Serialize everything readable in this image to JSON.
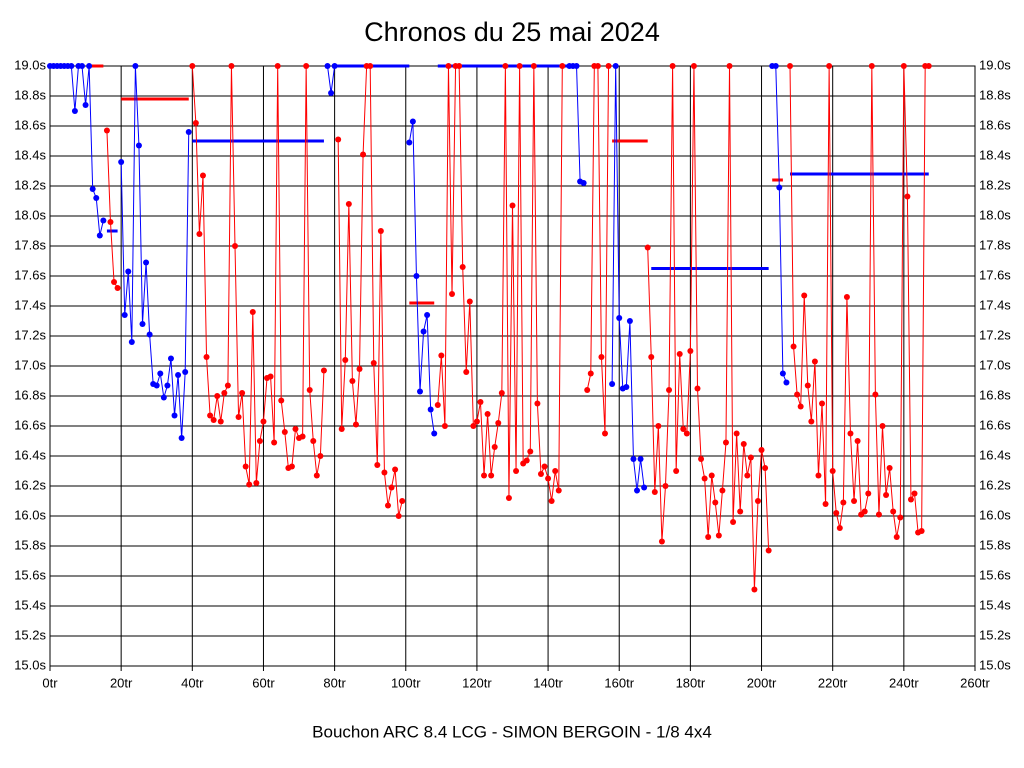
{
  "chart_data": {
    "type": "line",
    "title": "Chronos du 25 mai 2024",
    "caption": "Bouchon ARC 8.4 LCG - SIMON BERGOIN - 1/8 4x4",
    "xlim": [
      0,
      260
    ],
    "ylim": [
      15.0,
      19.0
    ],
    "grid": true,
    "xticks": [
      {
        "value": 0,
        "label": "0tr"
      },
      {
        "value": 20,
        "label": "20tr"
      },
      {
        "value": 40,
        "label": "40tr"
      },
      {
        "value": 60,
        "label": "60tr"
      },
      {
        "value": 80,
        "label": "80tr"
      },
      {
        "value": 100,
        "label": "100tr"
      },
      {
        "value": 120,
        "label": "120tr"
      },
      {
        "value": 140,
        "label": "140tr"
      },
      {
        "value": 160,
        "label": "160tr"
      },
      {
        "value": 180,
        "label": "180tr"
      },
      {
        "value": 200,
        "label": "200tr"
      },
      {
        "value": 220,
        "label": "220tr"
      },
      {
        "value": 240,
        "label": "240tr"
      },
      {
        "value": 260,
        "label": "260tr"
      }
    ],
    "yticks": [
      {
        "value": 15.0,
        "label": "15.0s"
      },
      {
        "value": 15.2,
        "label": "15.2s"
      },
      {
        "value": 15.4,
        "label": "15.4s"
      },
      {
        "value": 15.6,
        "label": "15.6s"
      },
      {
        "value": 15.8,
        "label": "15.8s"
      },
      {
        "value": 16.0,
        "label": "16.0s"
      },
      {
        "value": 16.2,
        "label": "16.2s"
      },
      {
        "value": 16.4,
        "label": "16.4s"
      },
      {
        "value": 16.6,
        "label": "16.6s"
      },
      {
        "value": 16.8,
        "label": "16.8s"
      },
      {
        "value": 17.0,
        "label": "17.0s"
      },
      {
        "value": 17.2,
        "label": "17.2s"
      },
      {
        "value": 17.4,
        "label": "17.4s"
      },
      {
        "value": 17.6,
        "label": "17.6s"
      },
      {
        "value": 17.8,
        "label": "17.8s"
      },
      {
        "value": 18.0,
        "label": "18.0s"
      },
      {
        "value": 18.2,
        "label": "18.2s"
      },
      {
        "value": 18.4,
        "label": "18.4s"
      },
      {
        "value": 18.6,
        "label": "18.6s"
      },
      {
        "value": 18.8,
        "label": "18.8s"
      },
      {
        "value": 19.0,
        "label": "19.0s"
      }
    ],
    "series": [
      {
        "color": "#0000ff",
        "x": [
          0,
          1,
          2,
          3,
          4,
          5,
          6,
          7,
          8,
          9,
          10,
          11,
          12,
          13,
          14,
          15
        ],
        "values": [
          19,
          19,
          19,
          19,
          19,
          19,
          19,
          18.7,
          19,
          19,
          18.74,
          19,
          18.18,
          18.12,
          17.87,
          17.97
        ]
      },
      {
        "color": "#ff0000",
        "x": [
          16,
          17,
          18,
          19
        ],
        "values": [
          18.57,
          17.96,
          17.56,
          17.52
        ]
      },
      {
        "color": "#0000ff",
        "x": [
          20,
          21,
          22,
          23,
          24,
          25,
          26,
          27,
          28,
          29,
          30,
          31,
          32,
          33,
          34,
          35,
          36,
          37,
          38,
          39
        ],
        "values": [
          18.36,
          17.34,
          17.63,
          17.16,
          19,
          18.47,
          17.28,
          17.69,
          17.21,
          16.88,
          16.87,
          16.95,
          16.79,
          16.87,
          17.05,
          16.67,
          16.94,
          16.52,
          16.96,
          18.56
        ]
      },
      {
        "color": "#ff0000",
        "x": [
          40,
          41,
          42,
          43,
          44,
          45,
          46,
          47,
          48,
          49,
          50,
          51,
          52,
          53,
          54,
          55,
          56,
          57,
          58,
          59,
          60,
          61,
          62,
          63,
          64,
          65,
          66,
          67,
          68,
          69,
          70,
          71,
          72,
          73,
          74,
          75,
          76,
          77
        ],
        "values": [
          19,
          18.62,
          17.88,
          18.27,
          17.06,
          16.67,
          16.64,
          16.8,
          16.63,
          16.82,
          16.87,
          19,
          17.8,
          16.66,
          16.82,
          16.33,
          16.21,
          17.36,
          16.22,
          16.5,
          16.63,
          16.92,
          16.93,
          16.49,
          19,
          16.77,
          16.56,
          16.32,
          16.33,
          16.58,
          16.52,
          16.53,
          19,
          16.84,
          16.5,
          16.27,
          16.4,
          16.97
        ]
      },
      {
        "color": "#0000ff",
        "x": [
          78,
          79,
          80
        ],
        "values": [
          19,
          18.82,
          19
        ]
      },
      {
        "color": "#ff0000",
        "x": [
          81,
          82,
          83,
          84,
          85,
          86,
          87,
          88,
          89,
          90,
          91,
          92,
          93,
          94,
          95,
          96,
          97,
          98,
          99
        ],
        "values": [
          18.51,
          16.58,
          17.04,
          18.08,
          16.9,
          16.61,
          16.98,
          18.41,
          19,
          19,
          17.02,
          16.34,
          17.9,
          16.29,
          16.07,
          16.19,
          16.31,
          16.0,
          16.1
        ]
      },
      {
        "color": "#0000ff",
        "x": [
          101,
          102,
          103,
          104,
          105,
          106,
          107,
          108
        ],
        "values": [
          18.49,
          18.63,
          17.6,
          16.83,
          17.23,
          17.34,
          16.71,
          16.55
        ]
      },
      {
        "color": "#ff0000",
        "x": [
          109,
          110,
          111,
          112,
          113,
          114,
          115,
          116,
          117,
          118,
          119,
          120,
          121,
          122,
          123,
          124,
          125,
          126,
          127,
          128,
          129,
          130,
          131,
          132,
          133,
          134,
          135,
          136,
          137,
          138,
          139,
          140,
          141,
          142,
          143,
          144
        ],
        "values": [
          16.74,
          17.07,
          16.6,
          19,
          17.48,
          19,
          19,
          17.66,
          16.96,
          17.43,
          16.6,
          16.63,
          16.76,
          16.27,
          16.68,
          16.27,
          16.46,
          16.62,
          16.82,
          19,
          16.12,
          18.07,
          16.3,
          19,
          16.35,
          16.37,
          16.43,
          19,
          16.75,
          16.28,
          16.33,
          16.25,
          16.1,
          16.3,
          16.17,
          19
        ]
      },
      {
        "color": "#0000ff",
        "x": [
          146,
          147,
          148,
          149,
          150
        ],
        "values": [
          19,
          19,
          19,
          18.23,
          18.22
        ]
      },
      {
        "color": "#ff0000",
        "x": [
          151,
          152,
          153,
          154,
          155,
          156,
          157
        ],
        "values": [
          16.84,
          16.95,
          19,
          19,
          17.06,
          16.55,
          19
        ]
      },
      {
        "color": "#0000ff",
        "x": [
          158,
          159,
          160,
          161,
          162,
          163,
          164,
          165,
          166,
          167
        ],
        "values": [
          16.88,
          19,
          17.32,
          16.85,
          16.86,
          17.3,
          16.38,
          16.17,
          16.38,
          16.19
        ]
      },
      {
        "color": "#ff0000",
        "x": [
          168,
          169,
          170,
          171,
          172,
          173,
          174,
          175,
          176,
          177,
          178,
          179,
          180,
          181,
          182,
          183,
          184,
          185,
          186,
          187,
          188,
          189,
          190,
          191,
          192,
          193,
          194,
          195,
          196,
          197,
          198,
          199,
          200,
          201,
          202
        ],
        "values": [
          17.79,
          17.06,
          16.16,
          16.6,
          15.83,
          16.2,
          16.84,
          19,
          16.3,
          17.08,
          16.58,
          16.55,
          17.1,
          19,
          16.85,
          16.38,
          16.25,
          15.86,
          16.27,
          16.09,
          15.87,
          16.17,
          16.49,
          19,
          15.96,
          16.55,
          16.03,
          16.48,
          16.27,
          16.39,
          15.51,
          16.1,
          16.44,
          16.32,
          15.77
        ]
      },
      {
        "color": "#0000ff",
        "x": [
          203,
          204,
          205,
          206,
          207
        ],
        "values": [
          19,
          19,
          18.19,
          16.95,
          16.89
        ]
      },
      {
        "color": "#ff0000",
        "x": [
          208,
          209,
          210,
          211,
          212,
          213,
          214,
          215,
          216,
          217,
          218,
          219,
          220,
          221,
          222,
          223,
          224,
          225,
          226,
          227,
          228,
          229,
          230,
          231,
          232,
          233,
          234,
          235,
          236,
          237,
          238,
          239,
          240,
          241,
          242,
          243,
          244,
          245,
          246,
          247
        ],
        "values": [
          19,
          17.13,
          16.81,
          16.73,
          17.47,
          16.87,
          16.63,
          17.03,
          16.27,
          16.75,
          16.08,
          19,
          16.3,
          16.02,
          15.92,
          16.09,
          17.46,
          16.55,
          16.1,
          16.5,
          16.01,
          16.03,
          16.15,
          19,
          16.81,
          16.01,
          16.6,
          16.14,
          16.32,
          16.03,
          15.86,
          15.99,
          19,
          18.13,
          16.11,
          16.15,
          15.89,
          15.9,
          19,
          19
        ]
      }
    ],
    "averages": [
      {
        "color": "#ff0000",
        "x": [
          11,
          15
        ],
        "value": 19
      },
      {
        "color": "#0000ff",
        "x": [
          16,
          19
        ],
        "value": 17.9
      },
      {
        "color": "#ff0000",
        "x": [
          20,
          39
        ],
        "value": 18.78
      },
      {
        "color": "#0000ff",
        "x": [
          40,
          77
        ],
        "value": 18.5
      },
      {
        "color": "#0000ff",
        "x": [
          80,
          101
        ],
        "value": 19
      },
      {
        "color": "#ff0000",
        "x": [
          101,
          108
        ],
        "value": 17.42
      },
      {
        "color": "#0000ff",
        "x": [
          109,
          146
        ],
        "value": 19
      },
      {
        "color": "#ff0000",
        "x": [
          158,
          168
        ],
        "value": 18.5
      },
      {
        "color": "#0000ff",
        "x": [
          169,
          202
        ],
        "value": 17.65
      },
      {
        "color": "#ff0000",
        "x": [
          203,
          206
        ],
        "value": 18.24
      },
      {
        "color": "#0000ff",
        "x": [
          208,
          247
        ],
        "value": 18.28
      }
    ]
  }
}
